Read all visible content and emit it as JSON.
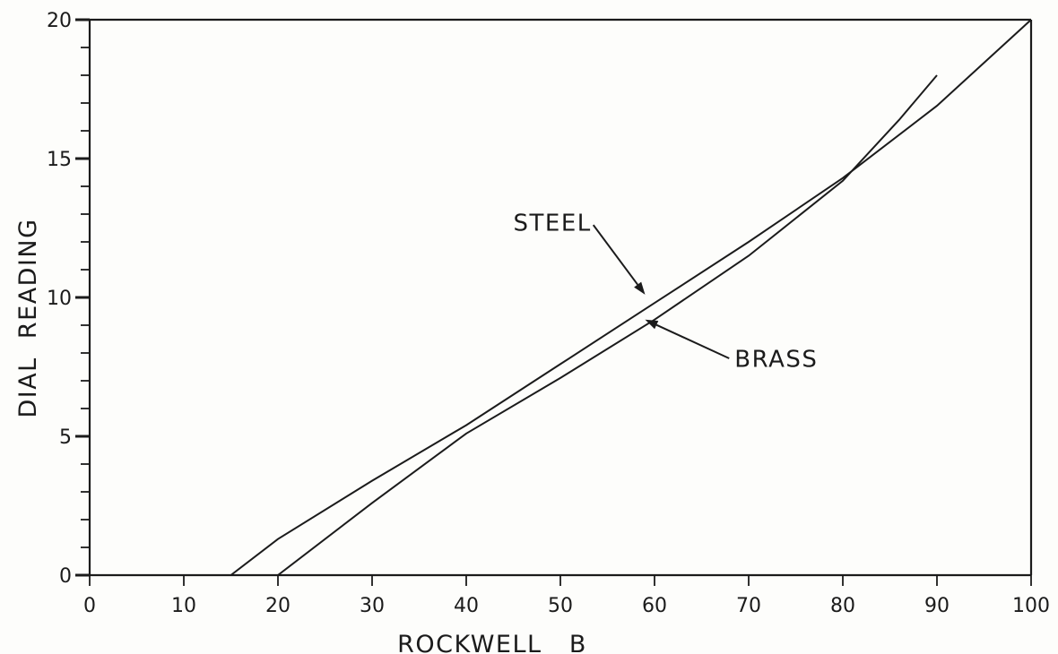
{
  "chart_data": {
    "type": "line",
    "title": "",
    "xlabel": "ROCKWELL   B",
    "ylabel": "DIAL  READING",
    "xlim": [
      0,
      100
    ],
    "ylim": [
      0,
      20
    ],
    "x_ticks": [
      0,
      10,
      20,
      30,
      40,
      50,
      60,
      70,
      80,
      90,
      100
    ],
    "y_ticks": [
      0,
      5,
      10,
      15,
      20
    ],
    "y_minor_step": 1,
    "grid": false,
    "legend": "none",
    "series": [
      {
        "name": "STEEL",
        "x": [
          15,
          20,
          30,
          40,
          50,
          60,
          70,
          80,
          90,
          100
        ],
        "y": [
          0,
          1.3,
          3.4,
          5.4,
          7.6,
          9.8,
          12.0,
          14.3,
          16.9,
          20.0
        ]
      },
      {
        "name": "BRASS",
        "x": [
          20,
          30,
          38,
          40,
          50,
          60,
          70,
          80,
          86,
          90
        ],
        "y": [
          0,
          2.6,
          4.6,
          5.1,
          7.1,
          9.2,
          11.5,
          14.2,
          16.4,
          18.0
        ]
      }
    ],
    "annotations": [
      {
        "text": "STEEL",
        "text_at": [
          45,
          12.4
        ],
        "points_to": [
          59,
          10.1
        ]
      },
      {
        "text": "BRASS",
        "text_at": [
          68.5,
          7.5
        ],
        "points_to": [
          59,
          9.2
        ]
      }
    ],
    "colors": {
      "ink": "#1b1b1b",
      "paper": "#fdfdfb"
    }
  }
}
